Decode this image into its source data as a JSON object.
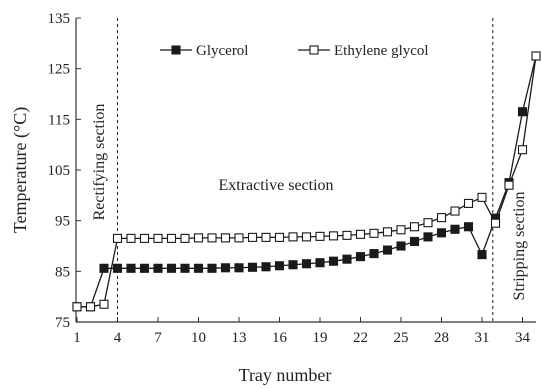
{
  "chart_data": {
    "type": "line",
    "title": "",
    "xlabel": "Tray number",
    "ylabel": "Temperature (°C)",
    "xlim": [
      1,
      35
    ],
    "ylim": [
      75,
      135
    ],
    "x_ticks": [
      1,
      4,
      7,
      10,
      13,
      16,
      19,
      22,
      25,
      28,
      31,
      34
    ],
    "y_ticks": [
      75,
      85,
      95,
      105,
      115,
      125,
      135
    ],
    "grid": false,
    "legend_position": "top-center",
    "x": [
      1,
      2,
      3,
      4,
      5,
      6,
      7,
      8,
      9,
      10,
      11,
      12,
      13,
      14,
      15,
      16,
      17,
      18,
      19,
      20,
      21,
      22,
      23,
      24,
      25,
      26,
      27,
      28,
      29,
      30,
      31,
      32,
      33,
      34,
      35
    ],
    "series": [
      {
        "name": "Glycerol",
        "marker": "filled-square",
        "values": [
          78.0,
          78.0,
          85.6,
          85.6,
          85.6,
          85.6,
          85.6,
          85.6,
          85.6,
          85.6,
          85.6,
          85.7,
          85.7,
          85.8,
          85.9,
          86.1,
          86.3,
          86.5,
          86.7,
          87.0,
          87.4,
          87.9,
          88.5,
          89.2,
          90.0,
          90.9,
          91.8,
          92.6,
          93.3,
          93.8,
          88.3,
          95.5,
          102.5,
          116.5,
          127.5
        ]
      },
      {
        "name": "Ethylene glycol",
        "marker": "open-square",
        "values": [
          78.0,
          78.0,
          78.5,
          91.5,
          91.5,
          91.5,
          91.5,
          91.5,
          91.5,
          91.6,
          91.6,
          91.6,
          91.6,
          91.7,
          91.7,
          91.7,
          91.8,
          91.8,
          91.9,
          92.0,
          92.1,
          92.3,
          92.5,
          92.8,
          93.2,
          93.8,
          94.6,
          95.6,
          96.9,
          98.4,
          99.6,
          94.5,
          102.0,
          109.0,
          127.5
        ]
      }
    ],
    "colors": {
      "line": "#1a1a1a",
      "axis": "#333333"
    },
    "section_dividers": [
      4,
      31.8
    ],
    "annotations": {
      "rectifying": "Rectifying section",
      "extractive": "Extractive section",
      "stripping": "Stripping section"
    }
  }
}
